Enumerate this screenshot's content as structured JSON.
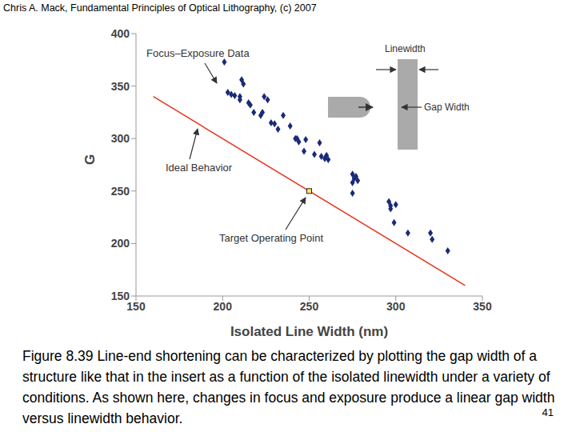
{
  "header": "Chris A. Mack, Fundamental Principles of Optical Lithography, (c) 2007",
  "chart_data": {
    "type": "scatter",
    "xlabel": "Isolated Line Width (nm)",
    "ylabel": "G",
    "xlim": [
      150,
      350
    ],
    "xticks": [
      150,
      200,
      250,
      300,
      350
    ],
    "ylim": [
      150,
      400
    ],
    "yticks": [
      150,
      200,
      250,
      300,
      350,
      400
    ],
    "annotations": [
      "Linewidth",
      "Gap Width"
    ],
    "series": [
      {
        "name": "Focus–Exposure Data",
        "type": "scatter",
        "marker": "diamond",
        "color": "#1a2a78",
        "x": [
          201,
          203,
          205,
          207,
          210,
          211,
          212,
          210,
          215,
          216,
          218,
          222,
          224,
          226,
          223,
          228,
          230,
          232,
          235,
          239,
          242,
          244,
          243,
          247,
          248,
          253,
          256,
          257,
          259,
          260,
          261,
          275,
          276,
          277,
          275,
          275,
          278,
          296,
          297,
          297,
          300,
          299,
          307,
          320,
          321,
          330
        ],
        "values": [
          373,
          344,
          342,
          341,
          340,
          356,
          352,
          337,
          334,
          332,
          325,
          322,
          340,
          337,
          325,
          315,
          314,
          309,
          322,
          312,
          300,
          297,
          300,
          288,
          299,
          285,
          296,
          283,
          281,
          284,
          280,
          266,
          262,
          264,
          258,
          248,
          260,
          240,
          236,
          233,
          237,
          220,
          210,
          210,
          204,
          193
        ]
      },
      {
        "name": "Ideal Behavior",
        "type": "line",
        "line_style": "solid",
        "marker": "none",
        "color": "#e8321e",
        "x": [
          160,
          340
        ],
        "values": [
          340,
          160
        ]
      },
      {
        "name": "Target Operating Point",
        "type": "scatter",
        "marker": "square",
        "color": "#f5e66a",
        "x": [
          250
        ],
        "values": [
          250
        ]
      }
    ]
  },
  "caption": "Figure 8.39 Line-end shortening can be characterized by plotting the gap width of a structure like that in the insert as a function of the isolated linewidth under a variety of conditions. As shown here, changes in focus and exposure produce a linear gap width versus linewidth behavior.",
  "page_number": 41
}
